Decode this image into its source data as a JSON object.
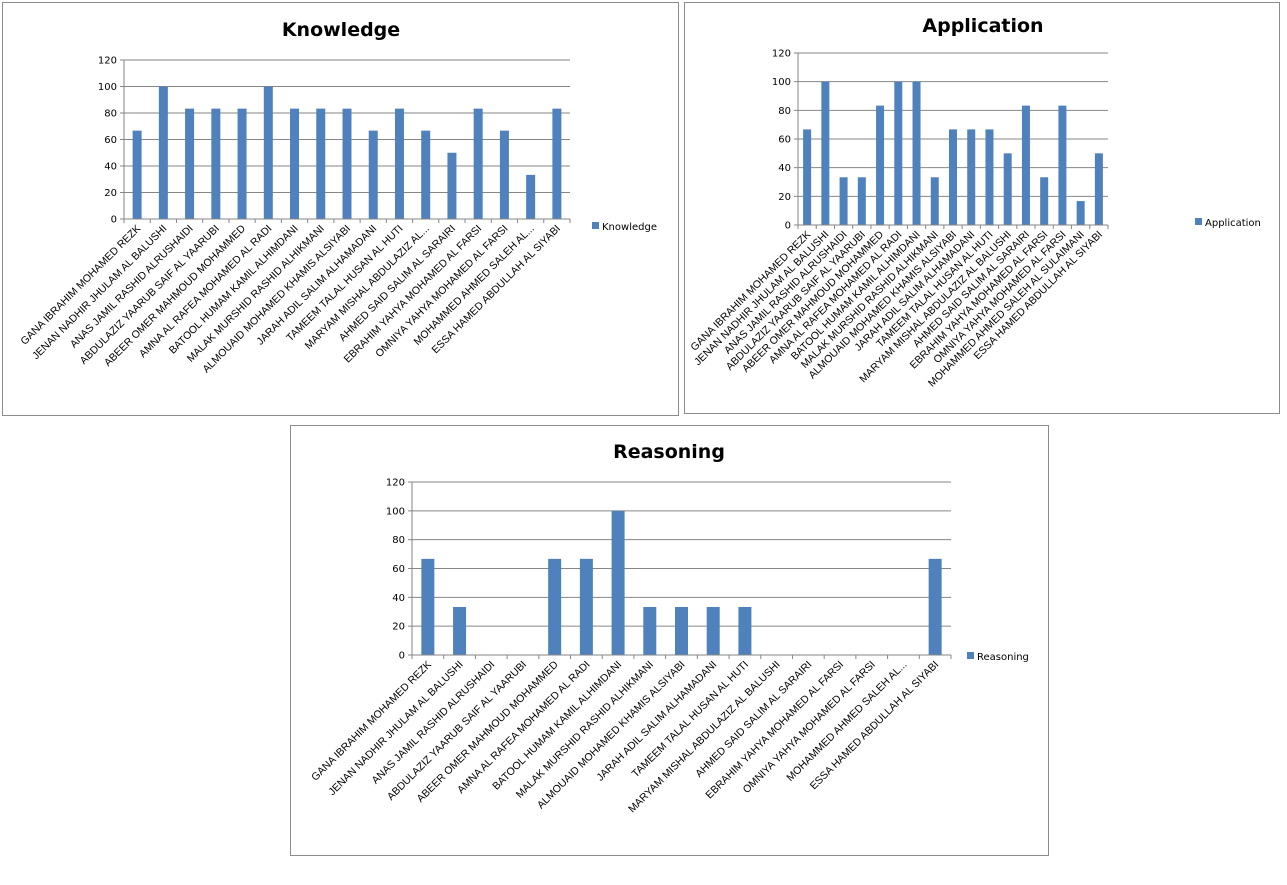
{
  "chart_data": [
    {
      "id": "knowledge",
      "type": "bar",
      "title": "Knowledge",
      "xlabel": "",
      "ylabel": "",
      "ylim": [
        0,
        120
      ],
      "yticks": [
        "0",
        "20",
        "40",
        "60",
        "80",
        "100",
        "120"
      ],
      "grid": true,
      "legend": {
        "entries": [
          "Knowledge"
        ],
        "placement": "right"
      },
      "color": "#4f81bd",
      "categories": [
        "GANA IBRAHIM MOHAMED REZK",
        "JENAN NADHIR JHULAM AL BALUSHI",
        "ANAS JAMIL RASHID ALRUSHAIDI",
        "ABDULAZIZ YAARUB SAIF AL YAARUBI",
        "ABEER OMER MAHMOUD MOHAMMED",
        "AMNA AL RAFEA MOHAMED AL RADI",
        "BATOOL HUMAM KAMIL ALHIMDANI",
        "MALAK MURSHID RASHID ALHIKMANI",
        "ALMOUAID MOHAMED KHAMIS ALSIYABI",
        "JARAH ADIL SALIM ALHAMADANI",
        "TAMEEM TALAL HUSAN AL HUTI",
        "MARYAM MISHAL ABDULAZIZ AL...",
        "AHMED SAID SALIM AL SARAIRI",
        "EBRAHIM YAHYA MOHAMED AL FARSI",
        "OMNIYA YAHYA MOHAMED AL FARSI",
        "MOHAMMED AHMED SALEH AL...",
        "ESSA HAMED ABDULLAH AL SIYABI"
      ],
      "series": [
        {
          "name": "Knowledge",
          "values": [
            66.7,
            100,
            83.3,
            83.3,
            83.3,
            100,
            83.3,
            83.3,
            83.3,
            66.7,
            83.3,
            66.7,
            50,
            83.3,
            66.7,
            33.3,
            83.3
          ]
        }
      ]
    },
    {
      "id": "application",
      "type": "bar",
      "title": "Application",
      "xlabel": "",
      "ylabel": "",
      "ylim": [
        0,
        120
      ],
      "yticks": [
        "0",
        "20",
        "40",
        "60",
        "80",
        "100",
        "120"
      ],
      "grid": true,
      "legend": {
        "entries": [
          "Application"
        ],
        "placement": "right"
      },
      "color": "#4f81bd",
      "categories": [
        "GANA IBRAHIM MOHAMED REZK",
        "JENAN NADHIR JHULAM AL BALUSHI",
        "ANAS JAMIL RASHID ALRUSHAIDI",
        "ABDULAZIZ YAARUB SAIF AL YAARUBI",
        "ABEER OMER MAHMOUD MOHAMMED",
        "AMNA AL RAFEA MOHAMED AL RADI",
        "BATOOL HUMAM KAMIL ALHIMDANI",
        "MALAK MURSHID RASHID ALHIKMANI",
        "ALMOUAID MOHAMED KHAMIS ALSIYABI",
        "JARAH ADIL SALIM ALHAMADANI",
        "TAMEEM TALAL HUSAN AL HUTI",
        "MARYAM MISHAL ABDULAZIZ AL BALUSHI",
        "AHMED SAID SALIM AL SARAIRI",
        "EBRAHIM YAHYA MOHAMED AL FARSI",
        "OMNIYA YAHYA MOHAMED AL FARSI",
        "MOHAMMED AHMED SALEH AL SULAIMANI",
        "ESSA HAMED ABDULLAH AL SIYABI"
      ],
      "series": [
        {
          "name": "Application",
          "values": [
            66.7,
            100,
            33.3,
            33.3,
            83.3,
            100,
            100,
            33.3,
            66.7,
            66.7,
            66.7,
            50,
            83.3,
            33.3,
            83.3,
            16.7,
            50
          ]
        }
      ]
    },
    {
      "id": "reasoning",
      "type": "bar",
      "title": "Reasoning",
      "xlabel": "",
      "ylabel": "",
      "ylim": [
        0,
        120
      ],
      "yticks": [
        "0",
        "20",
        "40",
        "60",
        "80",
        "100",
        "120"
      ],
      "grid": true,
      "legend": {
        "entries": [
          "Reasoning"
        ],
        "placement": "right"
      },
      "color": "#4f81bd",
      "categories": [
        "GANA IBRAHIM MOHAMED REZK",
        "JENAN NADHIR JHULAM AL BALUSHI",
        "ANAS JAMIL RASHID ALRUSHAIDI",
        "ABDULAZIZ YAARUB SAIF AL YAARUBI",
        "ABEER OMER MAHMOUD MOHAMMED",
        "AMNA AL RAFEA MOHAMED AL RADI",
        "BATOOL HUMAM KAMIL ALHIMDANI",
        "MALAK MURSHID RASHID ALHIKMANI",
        "ALMOUAID MOHAMED KHAMIS ALSIYABI",
        "JARAH ADIL SALIM ALHAMADANI",
        "TAMEEM TALAL HUSAN AL HUTI",
        "MARYAM MISHAL ABDULAZIZ AL BALUSHI",
        "AHMED SAID SALIM AL SARAIRI",
        "EBRAHIM YAHYA MOHAMED AL FARSI",
        "OMNIYA YAHYA MOHAMED AL FARSI",
        "MOHAMMED AHMED SALEH AL...",
        "ESSA HAMED ABDULLAH AL SIYABI"
      ],
      "series": [
        {
          "name": "Reasoning",
          "values": [
            66.7,
            33.3,
            0,
            0,
            66.7,
            66.7,
            100,
            33.3,
            33.3,
            33.3,
            33.3,
            0,
            0,
            0,
            0,
            0,
            66.7
          ]
        }
      ]
    }
  ]
}
